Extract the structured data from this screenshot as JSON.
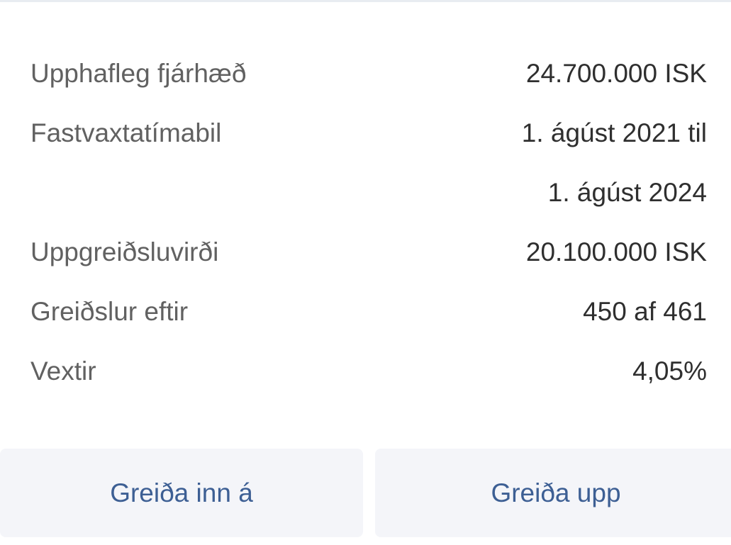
{
  "details": [
    {
      "label": "Upphafleg fjárhæð",
      "value": "24.700.000 ISK"
    },
    {
      "label": "Fastvaxtatímabil",
      "value": "1. ágúst 2021 til"
    },
    {
      "label": "",
      "value": "1. ágúst 2024"
    },
    {
      "label": "Uppgreiðsluvirði",
      "value": "20.100.000 ISK"
    },
    {
      "label": "Greiðslur eftir",
      "value": "450 af 461"
    },
    {
      "label": "Vextir",
      "value": "4,05%"
    }
  ],
  "actions": {
    "pay_in_label": "Greiða inn á",
    "pay_off_label": "Greiða upp"
  },
  "colors": {
    "button_bg": "#f4f5f9",
    "button_text": "#3d5f94"
  }
}
